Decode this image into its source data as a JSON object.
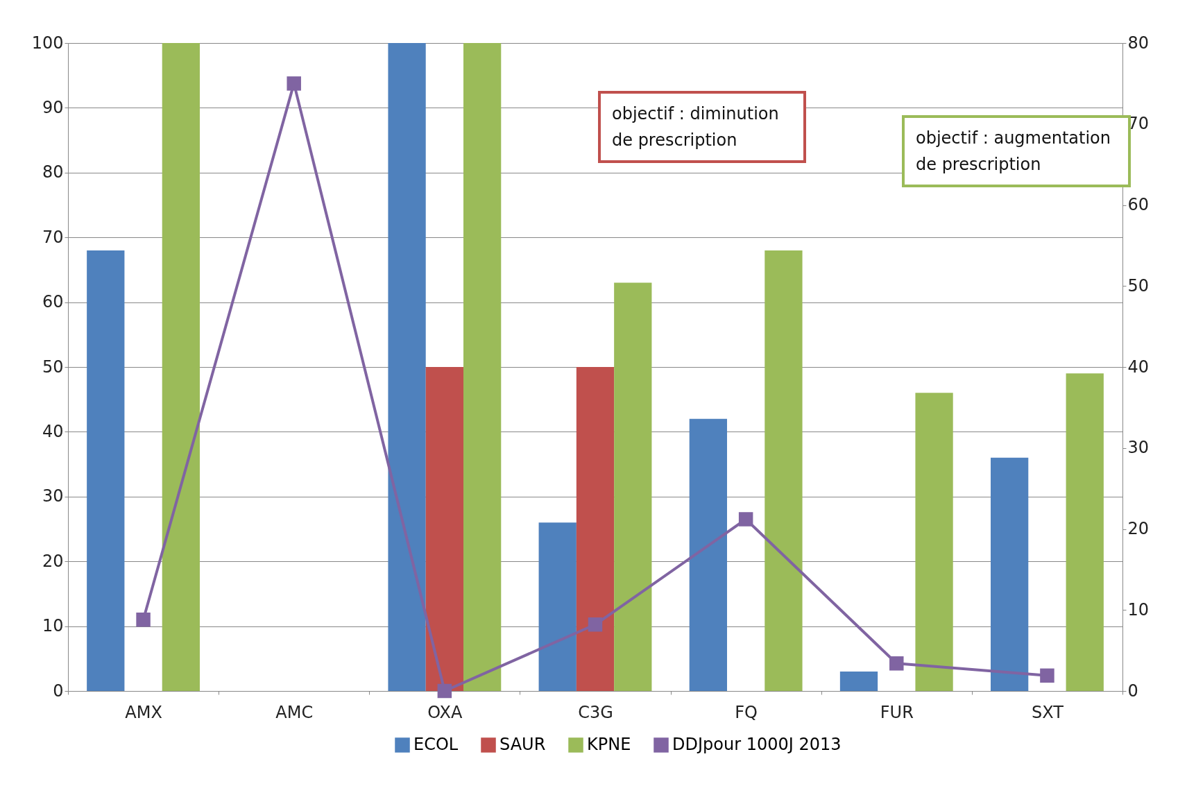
{
  "chart_data": {
    "type": "bar",
    "categories": [
      "AMX",
      "AMC",
      "OXA",
      "C3G",
      "FQ",
      "FUR",
      "SXT"
    ],
    "series": [
      {
        "name": "ECOL",
        "color": "#4f81bd",
        "values": [
          68,
          null,
          100,
          26,
          42,
          3,
          36
        ]
      },
      {
        "name": "SAUR",
        "color": "#c0504d",
        "values": [
          null,
          null,
          50,
          50,
          null,
          null,
          null
        ]
      },
      {
        "name": "KPNE",
        "color": "#9bbb59",
        "values": [
          100,
          null,
          100,
          63,
          68,
          46,
          49
        ]
      },
      {
        "name": "DDJpour 1000J 2013",
        "color": "#8064a2",
        "type": "line",
        "axis": "y2",
        "values": [
          8.8,
          75,
          0,
          8.2,
          21.2,
          3.4,
          1.9
        ]
      }
    ],
    "ylim": [
      0,
      100
    ],
    "yticks": [
      0,
      10,
      20,
      30,
      40,
      50,
      60,
      70,
      80,
      90,
      100
    ],
    "y2lim": [
      0,
      80
    ],
    "y2ticks": [
      0,
      10,
      20,
      30,
      40,
      50,
      60,
      70,
      80
    ],
    "grid": "y",
    "legend": "bottom",
    "marker": "square",
    "annotations": [
      "objectif : diminution de prescription",
      "objectif : augmentation de prescription"
    ]
  }
}
